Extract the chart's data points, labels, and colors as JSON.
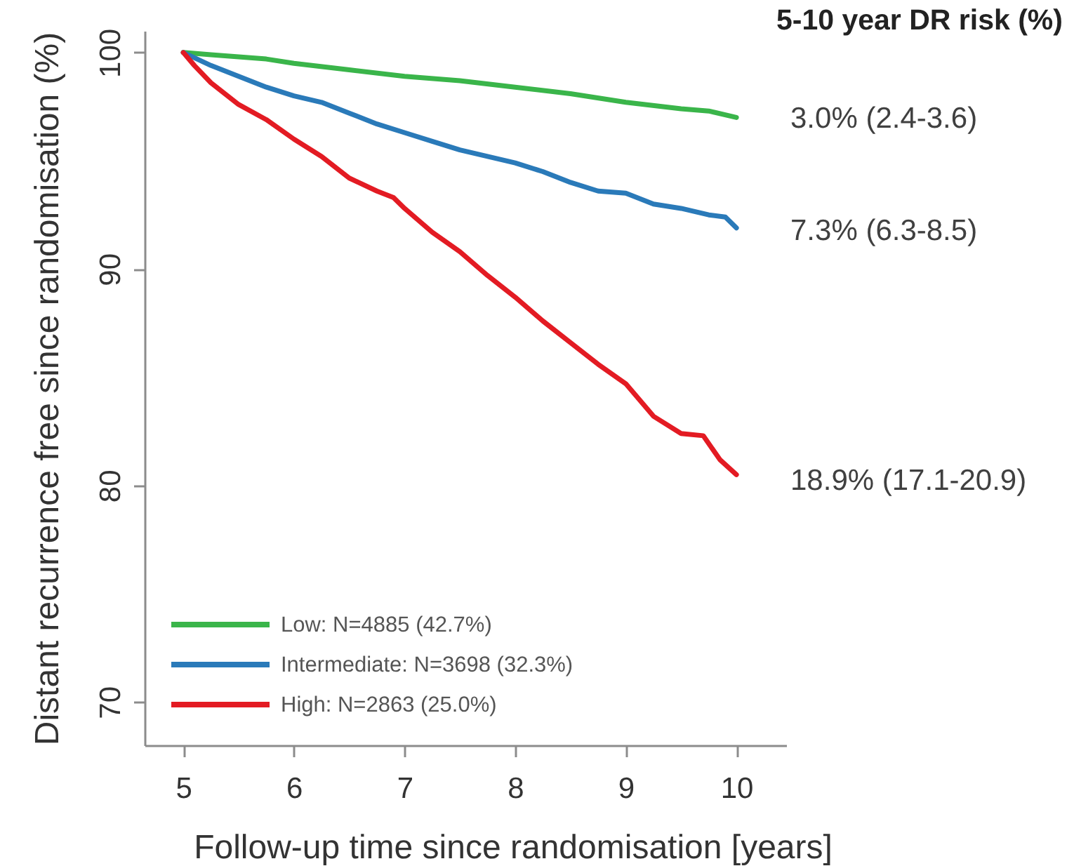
{
  "chart_data": {
    "type": "line",
    "xlabel": "Follow-up time since randomisation [years]",
    "ylabel": "Distant recurrence free since randomisation (%)",
    "xlim": [
      4.65,
      10.45
    ],
    "ylim": [
      68,
      101
    ],
    "xticks": [
      5,
      6,
      7,
      8,
      9,
      10
    ],
    "yticks": [
      70,
      80,
      90,
      100
    ],
    "legend": "bottom left",
    "series": [
      {
        "name": "Low: N=4885 (42.7%)",
        "color": "#3ab54a",
        "x": [
          5,
          5.25,
          5.5,
          5.75,
          6,
          6.5,
          7,
          7.5,
          8,
          8.5,
          9,
          9.5,
          9.75,
          10
        ],
        "values": [
          100,
          99.9,
          99.8,
          99.7,
          99.5,
          99.2,
          98.9,
          98.7,
          98.4,
          98.1,
          97.7,
          97.4,
          97.3,
          97.0
        ]
      },
      {
        "name": "Intermediate: N=3698 (32.3%)",
        "color": "#2a7ab9",
        "x": [
          5,
          5.25,
          5.5,
          5.75,
          6,
          6.25,
          6.5,
          6.75,
          7,
          7.25,
          7.5,
          7.75,
          8,
          8.25,
          8.5,
          8.75,
          9,
          9.25,
          9.5,
          9.75,
          9.9,
          10
        ],
        "values": [
          100,
          99.4,
          98.9,
          98.4,
          98.0,
          97.7,
          97.2,
          96.7,
          96.3,
          95.9,
          95.5,
          95.2,
          94.9,
          94.5,
          94.0,
          93.6,
          93.5,
          93.0,
          92.8,
          92.5,
          92.4,
          91.9
        ]
      },
      {
        "name": "High: N=2863 (25.0%)",
        "color": "#e31b23",
        "x": [
          5,
          5.1,
          5.25,
          5.5,
          5.75,
          6,
          6.25,
          6.5,
          6.75,
          6.9,
          7,
          7.25,
          7.5,
          7.75,
          8,
          8.25,
          8.5,
          8.75,
          9,
          9.25,
          9.5,
          9.7,
          9.85,
          10
        ],
        "values": [
          100,
          99.4,
          98.6,
          97.6,
          96.9,
          96.0,
          95.2,
          94.2,
          93.6,
          93.3,
          92.8,
          91.7,
          90.8,
          89.7,
          88.7,
          87.6,
          86.6,
          85.6,
          84.7,
          83.2,
          82.4,
          82.3,
          81.2,
          80.5
        ]
      }
    ],
    "annotations": [
      "5-10 year DR risk (%)",
      "3.0% (2.4-3.6)",
      "7.3% (6.3-8.5)",
      "18.9% (17.1-20.9)"
    ]
  }
}
